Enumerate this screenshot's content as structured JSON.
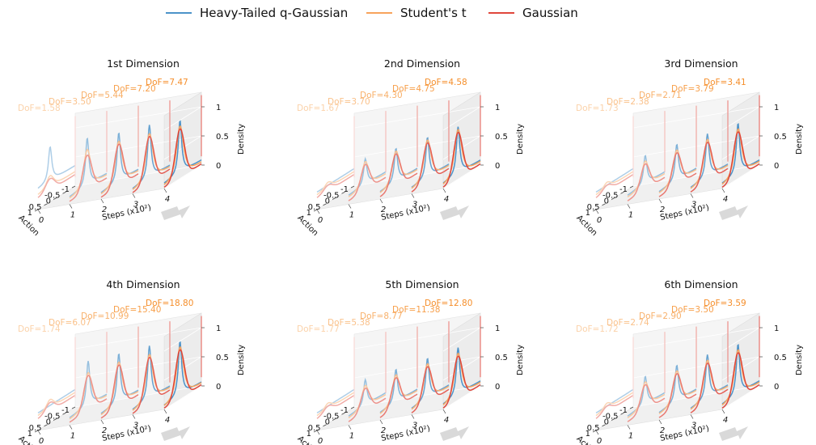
{
  "legend": [
    {
      "name": "Heavy-Tailed q-Gaussian",
      "color": "#4c93c9"
    },
    {
      "name": "Student's t",
      "color": "#f7a35c"
    },
    {
      "name": "Gaussian",
      "color": "#e0473c"
    }
  ],
  "chart_data": [
    {
      "type": "line",
      "title": "1st Dimension",
      "xlabel": "Steps (x10²)",
      "ylabel": "Action",
      "zlabel": "Density",
      "x_ticks": [
        "0",
        "1",
        "2",
        "3",
        "4"
      ],
      "y_ticks": [
        "-1",
        "-0.5",
        "0",
        "0.5",
        "1"
      ],
      "z_ticks": [
        "0",
        "0.5",
        "1"
      ],
      "dof": [
        "DoF=1.58",
        "DoF=3.50",
        "DoF=5.44",
        "DoF=7.20",
        "DoF=7.47"
      ],
      "series": [
        {
          "name": "Heavy-Tailed q-Gaussian",
          "peak_location": [
            0.35,
            0.05,
            0.05,
            0.1,
            0.15
          ],
          "peak_density": [
            0.95,
            0.95,
            0.95,
            1.0,
            1.0
          ],
          "tail_density": [
            0.35,
            0.12,
            0.1,
            0.08,
            0.08
          ]
        },
        {
          "name": "Student's t",
          "peak_location": [
            0.35,
            0.05,
            0.05,
            0.1,
            0.15
          ],
          "peak_density": [
            0.45,
            0.75,
            0.8,
            0.85,
            0.9
          ],
          "tail_density": [
            0.25,
            0.1,
            0.08,
            0.06,
            0.05
          ]
        },
        {
          "name": "Gaussian",
          "peak_location": [
            0.35,
            0.05,
            0.05,
            0.1,
            0.15
          ],
          "peak_density": [
            0.4,
            0.65,
            0.75,
            0.8,
            0.85
          ],
          "tail_density": [
            0.2,
            0.05,
            0.03,
            0.02,
            0.02
          ]
        }
      ]
    },
    {
      "type": "line",
      "title": "2nd Dimension",
      "xlabel": "Steps (x10²)",
      "ylabel": "Action",
      "zlabel": "Density",
      "x_ticks": [
        "0",
        "1",
        "2",
        "3",
        "4"
      ],
      "y_ticks": [
        "-1",
        "-0.5",
        "0",
        "0.5",
        "1"
      ],
      "z_ticks": [
        "0",
        "0.5",
        "1"
      ],
      "dof": [
        "DoF=1.67",
        "DoF=3.70",
        "DoF=4.30",
        "DoF=4.75",
        "DoF=4.58"
      ],
      "series": [
        {
          "name": "Heavy-Tailed q-Gaussian",
          "peak_location": [
            0.4,
            0.1,
            0.15,
            0.15,
            0.2
          ],
          "peak_density": [
            0.3,
            0.6,
            0.7,
            0.8,
            0.9
          ],
          "tail_density": [
            0.3,
            0.15,
            0.12,
            0.1,
            0.08
          ]
        },
        {
          "name": "Student's t",
          "peak_location": [
            0.4,
            0.1,
            0.15,
            0.15,
            0.2
          ],
          "peak_density": [
            0.35,
            0.55,
            0.65,
            0.75,
            0.85
          ],
          "tail_density": [
            0.25,
            0.12,
            0.1,
            0.08,
            0.06
          ]
        },
        {
          "name": "Gaussian",
          "peak_location": [
            0.4,
            0.1,
            0.15,
            0.15,
            0.2
          ],
          "peak_density": [
            0.3,
            0.5,
            0.6,
            0.7,
            0.8
          ],
          "tail_density": [
            0.2,
            0.06,
            0.04,
            0.03,
            0.02
          ]
        }
      ]
    },
    {
      "type": "line",
      "title": "3rd Dimension",
      "xlabel": "Steps (x10²)",
      "ylabel": "Action",
      "zlabel": "Density",
      "x_ticks": [
        "0",
        "1",
        "2",
        "3",
        "4"
      ],
      "y_ticks": [
        "-1",
        "-0.5",
        "0",
        "0.5",
        "1"
      ],
      "z_ticks": [
        "0",
        "0.5",
        "1"
      ],
      "dof": [
        "DoF=1.73",
        "DoF=2.38",
        "DoF=2.71",
        "DoF=3.79",
        "DoF=3.41"
      ],
      "series": [
        {
          "name": "Heavy-Tailed q-Gaussian",
          "peak_location": [
            0.4,
            0.05,
            0.05,
            0.1,
            0.15
          ],
          "peak_density": [
            0.3,
            0.65,
            0.75,
            0.85,
            0.95
          ],
          "tail_density": [
            0.3,
            0.15,
            0.12,
            0.1,
            0.08
          ]
        },
        {
          "name": "Student's t",
          "peak_location": [
            0.4,
            0.05,
            0.05,
            0.1,
            0.15
          ],
          "peak_density": [
            0.35,
            0.55,
            0.65,
            0.75,
            0.85
          ],
          "tail_density": [
            0.25,
            0.12,
            0.1,
            0.08,
            0.06
          ]
        },
        {
          "name": "Gaussian",
          "peak_location": [
            0.4,
            0.05,
            0.05,
            0.1,
            0.15
          ],
          "peak_density": [
            0.3,
            0.5,
            0.6,
            0.7,
            0.8
          ],
          "tail_density": [
            0.2,
            0.06,
            0.04,
            0.03,
            0.02
          ]
        }
      ]
    },
    {
      "type": "line",
      "title": "4th Dimension",
      "xlabel": "Steps (x10²)",
      "ylabel": "Action",
      "zlabel": "Density",
      "x_ticks": [
        "0",
        "1",
        "2",
        "3",
        "4"
      ],
      "y_ticks": [
        "-1",
        "-0.5",
        "0",
        "0.5",
        "1"
      ],
      "z_ticks": [
        "0",
        "0.5",
        "1"
      ],
      "dof": [
        "DoF=1.74",
        "DoF=6.07",
        "DoF=10.99",
        "DoF=15.40",
        "DoF=18.80"
      ],
      "series": [
        {
          "name": "Heavy-Tailed q-Gaussian",
          "peak_location": [
            0.35,
            0.0,
            0.05,
            0.1,
            0.15
          ],
          "peak_density": [
            0.3,
            0.9,
            0.95,
            1.0,
            1.0
          ],
          "tail_density": [
            0.3,
            0.12,
            0.1,
            0.08,
            0.06
          ]
        },
        {
          "name": "Student's t",
          "peak_location": [
            0.35,
            0.0,
            0.05,
            0.1,
            0.15
          ],
          "peak_density": [
            0.4,
            0.7,
            0.8,
            0.85,
            0.9
          ],
          "tail_density": [
            0.25,
            0.1,
            0.08,
            0.06,
            0.05
          ]
        },
        {
          "name": "Gaussian",
          "peak_location": [
            0.35,
            0.0,
            0.05,
            0.1,
            0.15
          ],
          "peak_density": [
            0.35,
            0.65,
            0.75,
            0.8,
            0.85
          ],
          "tail_density": [
            0.2,
            0.05,
            0.03,
            0.02,
            0.02
          ]
        }
      ]
    },
    {
      "type": "line",
      "title": "5th Dimension",
      "xlabel": "Steps (x10²)",
      "ylabel": "Action",
      "zlabel": "Density",
      "x_ticks": [
        "0",
        "1",
        "2",
        "3",
        "4"
      ],
      "y_ticks": [
        "-1",
        "-0.5",
        "0",
        "0.5",
        "1"
      ],
      "z_ticks": [
        "0",
        "0.5",
        "1"
      ],
      "dof": [
        "DoF=1.77",
        "DoF=5.38",
        "DoF=8.77",
        "DoF=11.38",
        "DoF=12.80"
      ],
      "series": [
        {
          "name": "Heavy-Tailed q-Gaussian",
          "peak_location": [
            0.4,
            0.1,
            0.15,
            0.15,
            0.2
          ],
          "peak_density": [
            0.3,
            0.6,
            0.7,
            0.8,
            0.9
          ],
          "tail_density": [
            0.3,
            0.15,
            0.12,
            0.1,
            0.08
          ]
        },
        {
          "name": "Student's t",
          "peak_location": [
            0.4,
            0.1,
            0.15,
            0.15,
            0.2
          ],
          "peak_density": [
            0.35,
            0.5,
            0.6,
            0.7,
            0.8
          ],
          "tail_density": [
            0.25,
            0.12,
            0.1,
            0.08,
            0.06
          ]
        },
        {
          "name": "Gaussian",
          "peak_location": [
            0.4,
            0.1,
            0.15,
            0.15,
            0.2
          ],
          "peak_density": [
            0.3,
            0.45,
            0.55,
            0.65,
            0.75
          ],
          "tail_density": [
            0.2,
            0.06,
            0.04,
            0.03,
            0.02
          ]
        }
      ]
    },
    {
      "type": "line",
      "title": "6th Dimension",
      "xlabel": "Steps (x10²)",
      "ylabel": "Action",
      "zlabel": "Density",
      "x_ticks": [
        "0",
        "1",
        "2",
        "3",
        "4"
      ],
      "y_ticks": [
        "-1",
        "-0.5",
        "0",
        "0.5",
        "1"
      ],
      "z_ticks": [
        "0",
        "0.5",
        "1"
      ],
      "dof": [
        "DoF=1.72",
        "DoF=2.74",
        "DoF=2.90",
        "DoF=3.50",
        "DoF=3.59"
      ],
      "series": [
        {
          "name": "Heavy-Tailed q-Gaussian",
          "peak_location": [
            0.4,
            0.05,
            0.05,
            0.1,
            0.15
          ],
          "peak_density": [
            0.3,
            0.65,
            0.75,
            0.85,
            0.95
          ],
          "tail_density": [
            0.3,
            0.15,
            0.12,
            0.1,
            0.08
          ]
        },
        {
          "name": "Student's t",
          "peak_location": [
            0.4,
            0.05,
            0.05,
            0.1,
            0.15
          ],
          "peak_density": [
            0.35,
            0.55,
            0.65,
            0.75,
            0.85
          ],
          "tail_density": [
            0.25,
            0.12,
            0.1,
            0.08,
            0.06
          ]
        },
        {
          "name": "Gaussian",
          "peak_location": [
            0.4,
            0.05,
            0.05,
            0.1,
            0.15
          ],
          "peak_density": [
            0.3,
            0.5,
            0.6,
            0.7,
            0.8
          ],
          "tail_density": [
            0.2,
            0.06,
            0.04,
            0.03,
            0.02
          ]
        }
      ]
    }
  ]
}
